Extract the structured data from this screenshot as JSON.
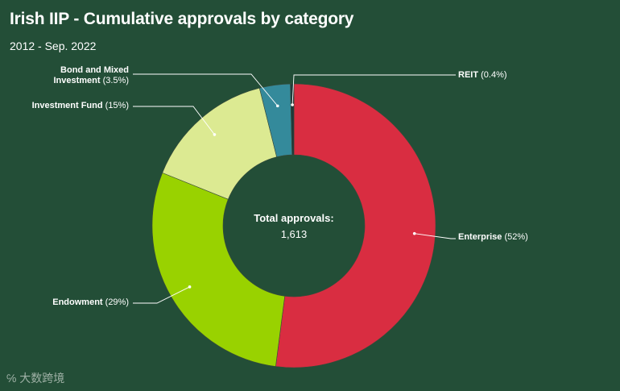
{
  "title": "Irish IIP - Cumulative approvals by category",
  "subtitle": "2012 - Sep. 2022",
  "watermark": "大数跨境",
  "center": {
    "label": "Total approvals:",
    "value": "1,613"
  },
  "colors": {
    "background": "#234e37",
    "Enterprise": "#d92d41",
    "Endowment": "#99d200",
    "Investment Fund": "#dcea92",
    "Bond and Mixed Investment": "#348a9b",
    "REIT": "#1e3a3a"
  },
  "chart_data": {
    "type": "pie",
    "donut": true,
    "title": "Irish IIP - Cumulative approvals by category",
    "subtitle": "2012 - Sep. 2022",
    "total": 1613,
    "slices": [
      {
        "name": "Enterprise",
        "value": 52,
        "label": "(52%)"
      },
      {
        "name": "Endowment",
        "value": 29,
        "label": "(29%)"
      },
      {
        "name": "Investment Fund",
        "value": 15,
        "label": "(15%)"
      },
      {
        "name": "Bond and Mixed Investment",
        "value": 3.5,
        "label": "(3.5%)"
      },
      {
        "name": "REIT",
        "value": 0.4,
        "label": "(0.4%)"
      }
    ]
  }
}
